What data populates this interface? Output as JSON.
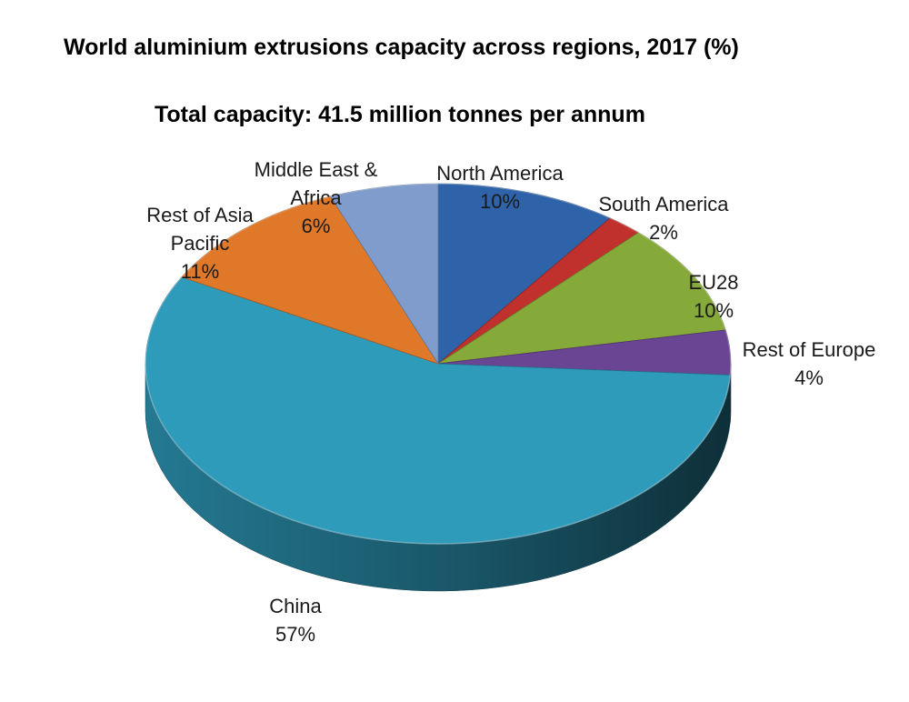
{
  "title": "World aluminium extrusions capacity across regions, 2017 (%)",
  "subtitle": "Total capacity: 41.5 million tonnes per annum",
  "chart_data": {
    "type": "pie",
    "title": "World aluminium extrusions capacity across regions, 2017 (%)",
    "subtitle": "Total capacity: 41.5 million tonnes per annum",
    "slices": [
      {
        "label": "North America",
        "value_label": "10%",
        "value": 10,
        "color": "#2E63A9"
      },
      {
        "label": "South America",
        "value_label": "2%",
        "value": 2,
        "color": "#C0312E"
      },
      {
        "label": "EU28",
        "value_label": "10%",
        "value": 10,
        "color": "#86AA3A"
      },
      {
        "label": "Rest of Europe",
        "value_label": "4%",
        "value": 4,
        "color": "#6A4593"
      },
      {
        "label": "China",
        "value_label": "57%",
        "value": 57,
        "color": "#2E9BBB"
      },
      {
        "label": "Rest of Asia Pacific",
        "value_label": "11%",
        "value": 11,
        "color": "#E0782A"
      },
      {
        "label": "Middle East & Africa",
        "value_label": "6%",
        "value": 6,
        "color": "#7F9CCC"
      }
    ],
    "style": "3d-pie",
    "legend": "none"
  }
}
